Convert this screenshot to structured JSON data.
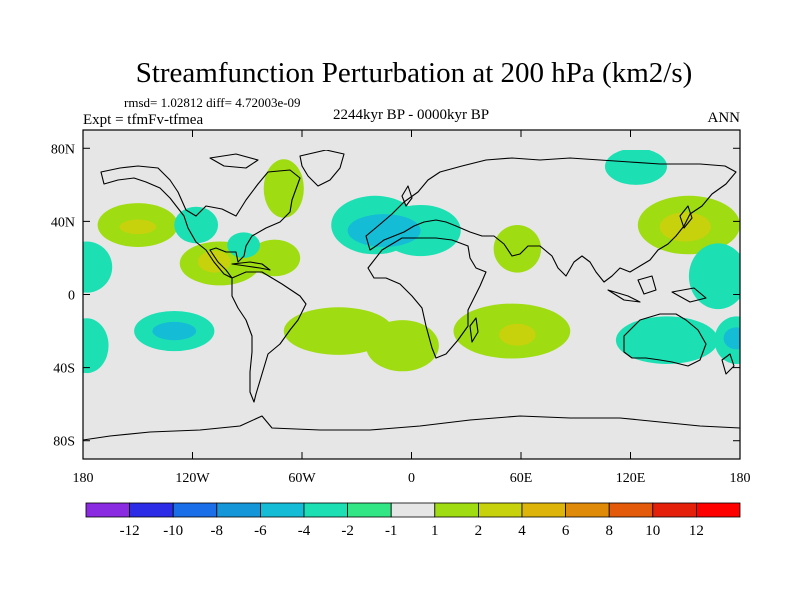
{
  "chart_data": {
    "type": "heatmap",
    "title": "Streamfunction Perturbation at 200 hPa (km2/s)",
    "stats_line": "rmsd= 1.02812 diff= 4.72003e-09",
    "experiment_label": "Expt = tfmFv-tfmea",
    "period_label": "2244kyr BP - 0000kyr BP",
    "season_label": "ANN",
    "projection": "cylindrical equidistant",
    "x_range": [
      -180,
      180
    ],
    "y_range": [
      -90,
      90
    ],
    "x_ticks": [
      {
        "value": -180,
        "label": "180"
      },
      {
        "value": -120,
        "label": "120W"
      },
      {
        "value": -60,
        "label": "60W"
      },
      {
        "value": 0,
        "label": "0"
      },
      {
        "value": 60,
        "label": "60E"
      },
      {
        "value": 120,
        "label": "120E"
      },
      {
        "value": 180,
        "label": "180"
      }
    ],
    "y_ticks": [
      {
        "value": 80,
        "label": "80N"
      },
      {
        "value": 40,
        "label": "40N"
      },
      {
        "value": 0,
        "label": "0"
      },
      {
        "value": -40,
        "label": "40S"
      },
      {
        "value": -80,
        "label": "80S"
      }
    ],
    "colorbar": {
      "boundaries": [
        "-12",
        "-10",
        "-8",
        "-6",
        "-4",
        "-2",
        "-1",
        "1",
        "2",
        "4",
        "6",
        "8",
        "10",
        "12"
      ],
      "colors": [
        "#8a2be2",
        "#2c2ce6",
        "#1a6ee8",
        "#1596d8",
        "#15bcd6",
        "#1ce0b4",
        "#32e686",
        "#e6e6e6",
        "#9fdc12",
        "#c8d20c",
        "#dcb40a",
        "#e08a0a",
        "#e25a0a",
        "#e4200a",
        "#ff0000"
      ]
    },
    "anomaly_regions": [
      {
        "name": "n-pacific-west-positive",
        "level": 2,
        "lon": -150,
        "lat": 38,
        "rx": 22,
        "ry": 12
      },
      {
        "name": "n-pacific-west-positive-core",
        "level": 4,
        "lon": -150,
        "lat": 37,
        "rx": 10,
        "ry": 4
      },
      {
        "name": "ne-pacific-negative",
        "level": -2,
        "lon": -118,
        "lat": 38,
        "rx": 12,
        "ry": 10
      },
      {
        "name": "tropical-central-pacific-negative",
        "level": -2,
        "lon": -178,
        "lat": 15,
        "rx": 14,
        "ry": 14
      },
      {
        "name": "mexico-positive",
        "level": 2,
        "lon": -105,
        "lat": 17,
        "rx": 22,
        "ry": 12
      },
      {
        "name": "mexico-positive-core",
        "level": 4,
        "lon": -108,
        "lat": 18,
        "rx": 9,
        "ry": 6
      },
      {
        "name": "caribbean-positive",
        "level": 2,
        "lon": -75,
        "lat": 20,
        "rx": 14,
        "ry": 10
      },
      {
        "name": "gulf-negative",
        "level": -2,
        "lon": -92,
        "lat": 27,
        "rx": 9,
        "ry": 7
      },
      {
        "name": "hudson-positive",
        "level": 2,
        "lon": -70,
        "lat": 58,
        "rx": 11,
        "ry": 16
      },
      {
        "name": "n-atlantic-negative",
        "level": -2,
        "lon": -20,
        "lat": 38,
        "rx": 24,
        "ry": 16
      },
      {
        "name": "europe-negative",
        "level": -2,
        "lon": 5,
        "lat": 35,
        "rx": 22,
        "ry": 14
      },
      {
        "name": "n-atlantic-negative-core",
        "level": -4,
        "lon": -15,
        "lat": 35,
        "rx": 20,
        "ry": 9
      },
      {
        "name": "arabia-positive",
        "level": 2,
        "lon": 58,
        "lat": 25,
        "rx": 13,
        "ry": 13
      },
      {
        "name": "siberia-negative",
        "level": -2,
        "lon": 123,
        "lat": 70,
        "rx": 17,
        "ry": 10
      },
      {
        "name": "nw-pacific-positive",
        "level": 2,
        "lon": 152,
        "lat": 38,
        "rx": 28,
        "ry": 16
      },
      {
        "name": "nw-pacific-positive-core",
        "level": 4,
        "lon": 150,
        "lat": 37,
        "rx": 14,
        "ry": 8
      },
      {
        "name": "w-pacific-equatorial-negative",
        "level": -2,
        "lon": 168,
        "lat": 10,
        "rx": 16,
        "ry": 18
      },
      {
        "name": "s-pacific-east-negative",
        "level": -2,
        "lon": -130,
        "lat": -20,
        "rx": 22,
        "ry": 11
      },
      {
        "name": "s-pacific-east-negative-core",
        "level": -4,
        "lon": -130,
        "lat": -20,
        "rx": 12,
        "ry": 5
      },
      {
        "name": "s-pacific-west-negative",
        "level": -2,
        "lon": -178,
        "lat": -28,
        "rx": 12,
        "ry": 15
      },
      {
        "name": "s-america-positive",
        "level": 2,
        "lon": -40,
        "lat": -20,
        "rx": 30,
        "ry": 13
      },
      {
        "name": "s-atlantic-positive",
        "level": 2,
        "lon": -5,
        "lat": -28,
        "rx": 20,
        "ry": 14
      },
      {
        "name": "s-indian-positive",
        "level": 2,
        "lon": 55,
        "lat": -20,
        "rx": 32,
        "ry": 15
      },
      {
        "name": "s-indian-positive-core",
        "level": 4,
        "lon": 58,
        "lat": -22,
        "rx": 10,
        "ry": 6
      },
      {
        "name": "australia-negative",
        "level": -2,
        "lon": 140,
        "lat": -25,
        "rx": 28,
        "ry": 13
      },
      {
        "name": "se-pacific-negative",
        "level": -2,
        "lon": 178,
        "lat": -25,
        "rx": 12,
        "ry": 13
      },
      {
        "name": "se-pacific-negative-core",
        "level": -4,
        "lon": 178,
        "lat": -24,
        "rx": 7,
        "ry": 6
      }
    ]
  }
}
